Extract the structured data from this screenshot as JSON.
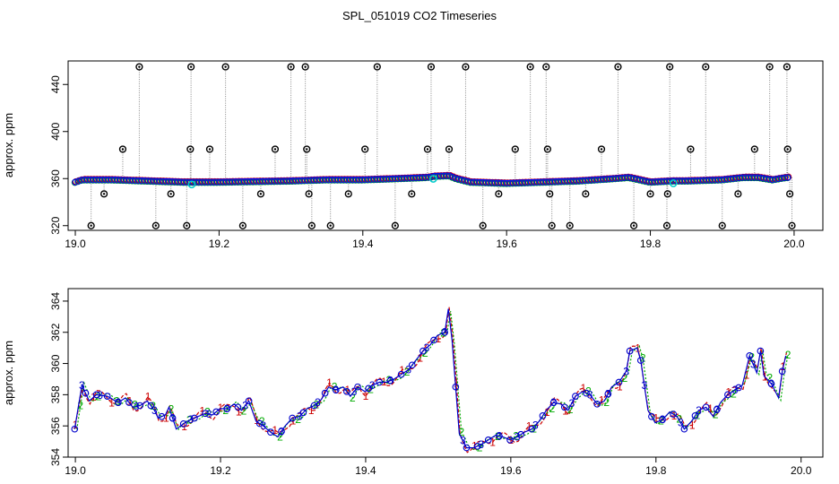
{
  "title": "SPL_051019  CO2 Timeseries",
  "chart_data": [
    {
      "type": "scatter",
      "ylabel": "approx. ppm",
      "xlim": [
        18.99,
        20.04
      ],
      "ylim": [
        316,
        460
      ],
      "xticks": [
        19.0,
        19.2,
        19.4,
        19.6,
        19.8,
        20.0
      ],
      "xtick_labels": [
        "19.0",
        "19.2",
        "19.4",
        "19.6",
        "19.8",
        "20.0"
      ],
      "yticks": [
        320,
        360,
        400,
        440
      ],
      "ytick_labels": [
        "320",
        "360",
        "400",
        "440"
      ],
      "baseline": [
        [
          19.0,
          357
        ],
        [
          19.01,
          359
        ],
        [
          19.05,
          359
        ],
        [
          19.1,
          358
        ],
        [
          19.15,
          357
        ],
        [
          19.16,
          357
        ],
        [
          19.2,
          357
        ],
        [
          19.25,
          357.5
        ],
        [
          19.3,
          358
        ],
        [
          19.35,
          359
        ],
        [
          19.4,
          359
        ],
        [
          19.45,
          360
        ],
        [
          19.49,
          361
        ],
        [
          19.5,
          362
        ],
        [
          19.52,
          362.5
        ],
        [
          19.53,
          360
        ],
        [
          19.55,
          357
        ],
        [
          19.6,
          356
        ],
        [
          19.65,
          357
        ],
        [
          19.7,
          358
        ],
        [
          19.75,
          360
        ],
        [
          19.77,
          361
        ],
        [
          19.8,
          357
        ],
        [
          19.83,
          358
        ],
        [
          19.85,
          358
        ],
        [
          19.9,
          359
        ],
        [
          19.93,
          361
        ],
        [
          19.95,
          361
        ],
        [
          19.97,
          359
        ],
        [
          19.99,
          361
        ]
      ],
      "outliers": [
        [
          19.022,
          320
        ],
        [
          19.04,
          347
        ],
        [
          19.066,
          385
        ],
        [
          19.089,
          455
        ],
        [
          19.112,
          320
        ],
        [
          19.133,
          347
        ],
        [
          19.155,
          320
        ],
        [
          19.16,
          385
        ],
        [
          19.161,
          455
        ],
        [
          19.187,
          385
        ],
        [
          19.209,
          455
        ],
        [
          19.233,
          320
        ],
        [
          19.258,
          347
        ],
        [
          19.278,
          385
        ],
        [
          19.3,
          455
        ],
        [
          19.32,
          455
        ],
        [
          19.322,
          385
        ],
        [
          19.325,
          347
        ],
        [
          19.329,
          320
        ],
        [
          19.355,
          320
        ],
        [
          19.38,
          347
        ],
        [
          19.403,
          385
        ],
        [
          19.42,
          455
        ],
        [
          19.445,
          320
        ],
        [
          19.468,
          347
        ],
        [
          19.49,
          385
        ],
        [
          19.495,
          455
        ],
        [
          19.52,
          385
        ],
        [
          19.543,
          455
        ],
        [
          19.567,
          320
        ],
        [
          19.589,
          347
        ],
        [
          19.612,
          385
        ],
        [
          19.633,
          455
        ],
        [
          19.655,
          455
        ],
        [
          19.657,
          385
        ],
        [
          19.66,
          347
        ],
        [
          19.663,
          320
        ],
        [
          19.688,
          320
        ],
        [
          19.71,
          347
        ],
        [
          19.732,
          385
        ],
        [
          19.755,
          455
        ],
        [
          19.777,
          320
        ],
        [
          19.8,
          347
        ],
        [
          19.823,
          320
        ],
        [
          19.824,
          347
        ],
        [
          19.827,
          455
        ],
        [
          19.856,
          385
        ],
        [
          19.877,
          455
        ],
        [
          19.9,
          320
        ],
        [
          19.922,
          347
        ],
        [
          19.945,
          385
        ],
        [
          19.966,
          455
        ],
        [
          19.99,
          455
        ],
        [
          19.991,
          385
        ],
        [
          19.994,
          347
        ],
        [
          19.997,
          320
        ]
      ],
      "series_colors": [
        "#cc0000",
        "#00aa00",
        "#0000ff",
        "#00cccc",
        "#000000"
      ]
    },
    {
      "type": "line",
      "ylabel": "approx. ppm",
      "xlim": [
        18.99,
        20.03
      ],
      "ylim": [
        354,
        364.8
      ],
      "xticks": [
        19.0,
        19.2,
        19.4,
        19.6,
        19.8,
        20.0
      ],
      "xtick_labels": [
        "19.0",
        "19.2",
        "19.4",
        "19.6",
        "19.8",
        "20.0"
      ],
      "yticks": [
        354,
        356,
        358,
        360,
        362,
        364
      ],
      "ytick_labels": [
        "354",
        "356",
        "358",
        "360",
        "362",
        "364"
      ],
      "series": [
        {
          "name": "1",
          "marker": "1",
          "color": "#cc0000",
          "offset": 0.3,
          "x_shift": 0.0
        },
        {
          "name": "2",
          "marker": "2",
          "color": "#00aa00",
          "offset": -0.15,
          "x_shift": 0.002
        },
        {
          "name": "3",
          "marker": "3",
          "color": "#0000cc",
          "offset": 0.0,
          "x_shift": -0.001
        }
      ],
      "base_points": [
        [
          19.0,
          355.8
        ],
        [
          19.01,
          358.6
        ],
        [
          19.02,
          357.6
        ],
        [
          19.03,
          358
        ],
        [
          19.045,
          357.9
        ],
        [
          19.06,
          357.5
        ],
        [
          19.07,
          357.8
        ],
        [
          19.08,
          357.2
        ],
        [
          19.09,
          357.3
        ],
        [
          19.1,
          357.6
        ],
        [
          19.11,
          357
        ],
        [
          19.115,
          356.5
        ],
        [
          19.125,
          356.7
        ],
        [
          19.13,
          357.2
        ],
        [
          19.14,
          355.8
        ],
        [
          19.155,
          356.3
        ],
        [
          19.17,
          356.6
        ],
        [
          19.18,
          356.8
        ],
        [
          19.19,
          356.7
        ],
        [
          19.2,
          357.1
        ],
        [
          19.21,
          357.1
        ],
        [
          19.22,
          357.4
        ],
        [
          19.23,
          357
        ],
        [
          19.24,
          357.6
        ],
        [
          19.25,
          356.3
        ],
        [
          19.26,
          356
        ],
        [
          19.27,
          355.6
        ],
        [
          19.28,
          355.3
        ],
        [
          19.29,
          356
        ],
        [
          19.3,
          356.5
        ],
        [
          19.31,
          356.6
        ],
        [
          19.32,
          357.1
        ],
        [
          19.33,
          357.3
        ],
        [
          19.34,
          357.7
        ],
        [
          19.35,
          358.5
        ],
        [
          19.36,
          358.3
        ],
        [
          19.37,
          358.5
        ],
        [
          19.38,
          357.9
        ],
        [
          19.39,
          358.5
        ],
        [
          19.4,
          358.2
        ],
        [
          19.41,
          358.6
        ],
        [
          19.42,
          358.8
        ],
        [
          19.43,
          358.8
        ],
        [
          19.44,
          359
        ],
        [
          19.45,
          359.3
        ],
        [
          19.46,
          359.6
        ],
        [
          19.47,
          360.2
        ],
        [
          19.48,
          360.8
        ],
        [
          19.49,
          361.2
        ],
        [
          19.5,
          361.8
        ],
        [
          19.51,
          362
        ],
        [
          19.515,
          363.5
        ],
        [
          19.52,
          361.5
        ],
        [
          19.53,
          355.5
        ],
        [
          19.54,
          354.6
        ],
        [
          19.55,
          354.6
        ],
        [
          19.56,
          354.8
        ],
        [
          19.57,
          355.1
        ],
        [
          19.58,
          355.4
        ],
        [
          19.59,
          355.3
        ],
        [
          19.6,
          355.1
        ],
        [
          19.61,
          355.3
        ],
        [
          19.62,
          355.6
        ],
        [
          19.63,
          355.8
        ],
        [
          19.64,
          356.3
        ],
        [
          19.65,
          357
        ],
        [
          19.66,
          357.5
        ],
        [
          19.67,
          357.4
        ],
        [
          19.68,
          357
        ],
        [
          19.69,
          357.9
        ],
        [
          19.7,
          358.2
        ],
        [
          19.71,
          358
        ],
        [
          19.72,
          357.4
        ],
        [
          19.73,
          357.6
        ],
        [
          19.74,
          358.5
        ],
        [
          19.75,
          358.8
        ],
        [
          19.76,
          359.5
        ],
        [
          19.765,
          360.8
        ],
        [
          19.775,
          361
        ],
        [
          19.78,
          360.2
        ],
        [
          19.79,
          357
        ],
        [
          19.8,
          356.2
        ],
        [
          19.81,
          356.4
        ],
        [
          19.82,
          356.9
        ],
        [
          19.83,
          356.6
        ],
        [
          19.84,
          355.8
        ],
        [
          19.85,
          356.3
        ],
        [
          19.86,
          357
        ],
        [
          19.87,
          357.2
        ],
        [
          19.88,
          356.6
        ],
        [
          19.89,
          357.5
        ],
        [
          19.9,
          358
        ],
        [
          19.91,
          358.3
        ],
        [
          19.92,
          358.6
        ],
        [
          19.93,
          360.5
        ],
        [
          19.94,
          359.4
        ],
        [
          19.945,
          360.8
        ],
        [
          19.95,
          359.2
        ],
        [
          19.96,
          358.7
        ],
        [
          19.97,
          357.8
        ],
        [
          19.975,
          359.5
        ],
        [
          19.98,
          360.5
        ]
      ]
    }
  ]
}
